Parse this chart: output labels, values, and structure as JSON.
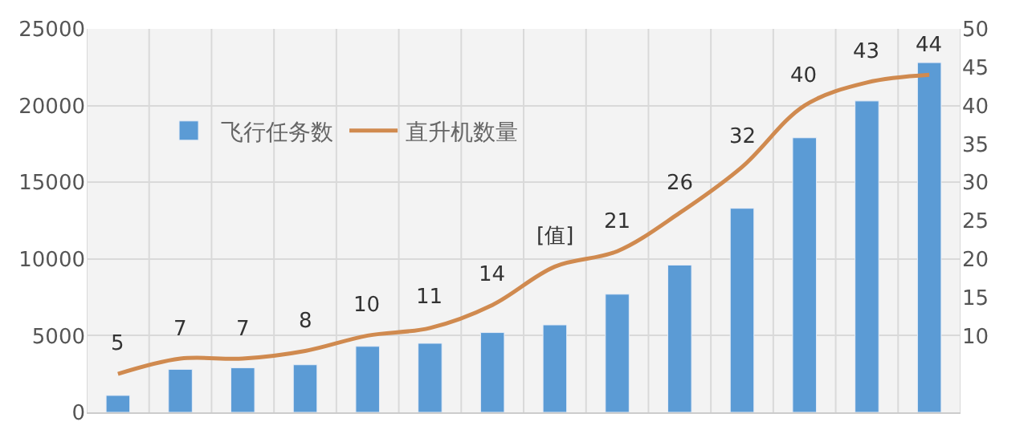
{
  "chart_data": {
    "type": "bar",
    "categories": [
      null,
      null,
      null,
      null,
      null,
      null,
      null,
      null,
      null,
      null,
      null,
      null,
      null,
      null
    ],
    "series": [
      {
        "name": "飞行任务数",
        "color": "#5b9bd5",
        "values": [
          1100,
          2800,
          2900,
          3100,
          4300,
          4500,
          5200,
          5700,
          7700,
          9600,
          13300,
          17900,
          20300,
          22800
        ]
      },
      {
        "name": "直升机数量",
        "type": "line",
        "axis": "y2",
        "color": "#d08a4f",
        "values": [
          5,
          7,
          7,
          8,
          10,
          11,
          14,
          19,
          21,
          26,
          32,
          40,
          43,
          44
        ],
        "value_labels": [
          "5",
          "7",
          "7",
          "8",
          "10",
          "11",
          "14",
          "[值]",
          "21",
          "26",
          "32",
          "40",
          "43",
          "44"
        ]
      }
    ],
    "ylim": [
      0,
      25000
    ],
    "yticks": [
      0,
      5000,
      10000,
      15000,
      20000,
      25000
    ],
    "y2lim": [
      0,
      50
    ],
    "y2ticks": [
      10,
      15,
      20,
      25,
      30,
      35,
      40,
      45,
      50
    ],
    "grid": true,
    "legend": "top left",
    "marker": "none"
  }
}
